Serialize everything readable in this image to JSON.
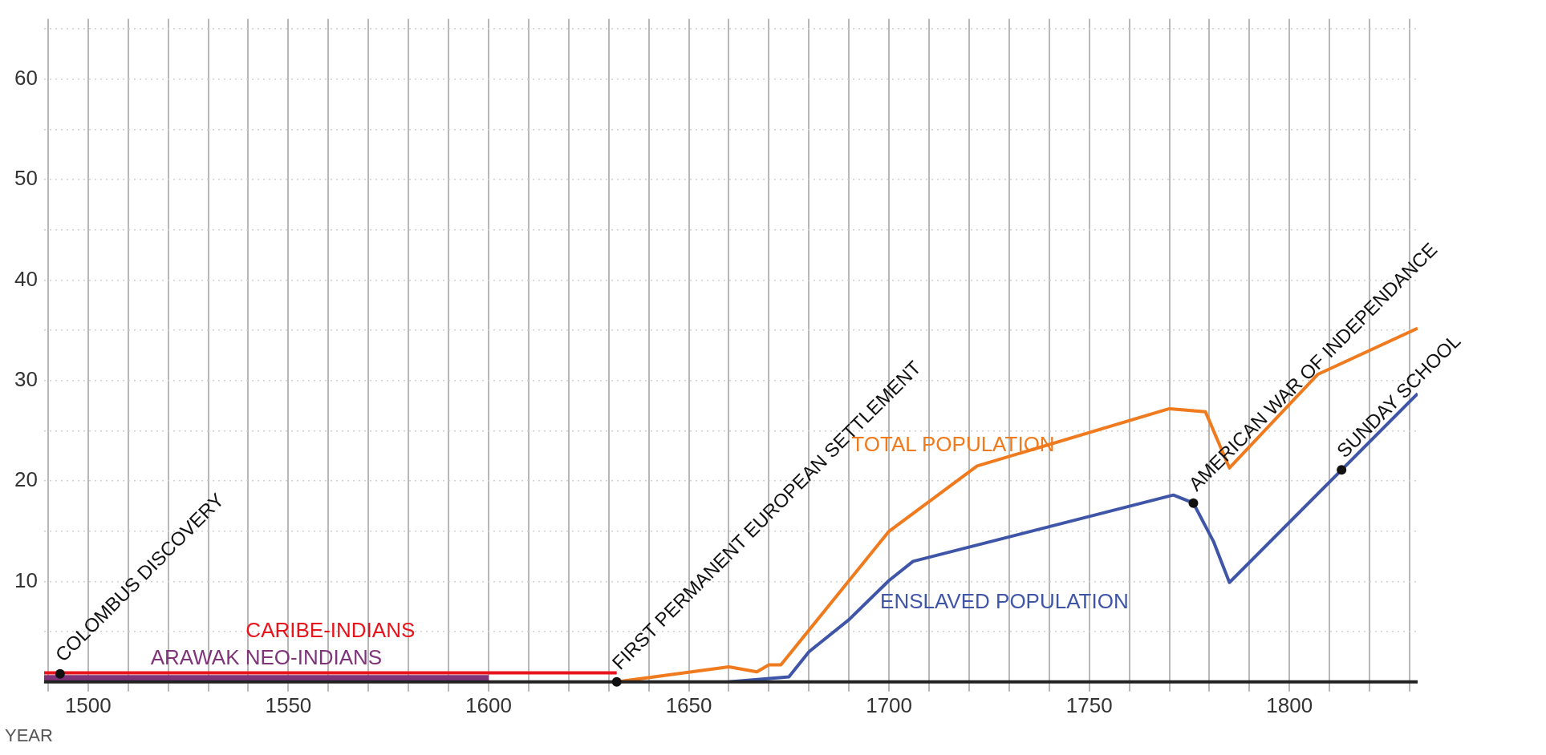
{
  "chart_data": {
    "type": "line",
    "xlabel": "YEAR",
    "xlim": [
      1489,
      1832
    ],
    "xticks": [
      {
        "value": 1490,
        "label": null
      },
      1500,
      {
        "value": 1510,
        "label": null
      },
      {
        "value": 1520,
        "label": null
      },
      {
        "value": 1530,
        "label": null
      },
      {
        "value": 1540,
        "label": null
      },
      1550,
      {
        "value": 1560,
        "label": null
      },
      {
        "value": 1570,
        "label": null
      },
      {
        "value": 1580,
        "label": null
      },
      {
        "value": 1590,
        "label": null
      },
      1600,
      {
        "value": 1610,
        "label": null
      },
      {
        "value": 1620,
        "label": null
      },
      {
        "value": 1630,
        "label": null
      },
      {
        "value": 1640,
        "label": null
      },
      1650,
      {
        "value": 1660,
        "label": null
      },
      {
        "value": 1670,
        "label": null
      },
      {
        "value": 1680,
        "label": null
      },
      {
        "value": 1690,
        "label": null
      },
      1700,
      {
        "value": 1710,
        "label": null
      },
      {
        "value": 1720,
        "label": null
      },
      {
        "value": 1730,
        "label": null
      },
      {
        "value": 1740,
        "label": null
      },
      1750,
      {
        "value": 1760,
        "label": null
      },
      {
        "value": 1770,
        "label": null
      },
      {
        "value": 1780,
        "label": null
      },
      {
        "value": 1790,
        "label": null
      },
      1800,
      {
        "value": 1810,
        "label": null
      },
      {
        "value": 1820,
        "label": null
      },
      {
        "value": 1830,
        "label": null
      }
    ],
    "ylim": [
      0,
      66
    ],
    "yticks": [
      {
        "value": 5,
        "label": null
      },
      10,
      {
        "value": 15,
        "label": null
      },
      20,
      {
        "value": 25,
        "label": null
      },
      30,
      {
        "value": 35,
        "label": null
      },
      40,
      {
        "value": 45,
        "label": null
      },
      50,
      {
        "value": 55,
        "label": null
      },
      60,
      {
        "value": 65,
        "label": null
      }
    ],
    "grid": true,
    "legend": false,
    "marker": "none",
    "line_style": "solid",
    "series": [
      {
        "name": "TOTAL POPULATION",
        "color": "#f07a1e",
        "x": [
          1632,
          1660,
          1667,
          1670,
          1673,
          1700,
          1722,
          1770,
          1779,
          1785,
          1807,
          1832
        ],
        "values": [
          0,
          1.5,
          1,
          1.7,
          1.7,
          15,
          21.5,
          27.2,
          26.9,
          21.3,
          30.6,
          35.2
        ]
      },
      {
        "name": "ENSLAVED POPULATION",
        "color": "#3f55a8",
        "x": [
          1660,
          1675,
          1680,
          1690,
          1700,
          1706,
          1771,
          1776,
          1781,
          1785,
          1813,
          1832
        ],
        "values": [
          0,
          0.5,
          3,
          6.2,
          10.1,
          12,
          18.6,
          17.8,
          14,
          9.9,
          21.1,
          28.7
        ]
      },
      {
        "name": "CARIBE-INDIANS",
        "color": "#e8131b",
        "x": [
          1489,
          1632
        ],
        "values": [
          0.9,
          0.9
        ]
      },
      {
        "name": "ARAWAK NEO-INDIANS",
        "color": "#7f3379",
        "x": [
          1489,
          1600
        ],
        "values": [
          0.4,
          0.4
        ]
      }
    ],
    "annotations": [
      {
        "text": "COLOMBUS DISCOVERY",
        "x": 1493,
        "y": 0.8
      },
      {
        "text": "FIRST PERMANENT EUROPEAN SETTLEMENT",
        "x": 1632,
        "y": 0
      },
      {
        "text": "AMERICAN WAR OF INDEPENDANCE",
        "x": 1776,
        "y": 17.8
      },
      {
        "text": "SUNDAY SCHOOL",
        "x": 1813,
        "y": 21.1
      }
    ]
  }
}
